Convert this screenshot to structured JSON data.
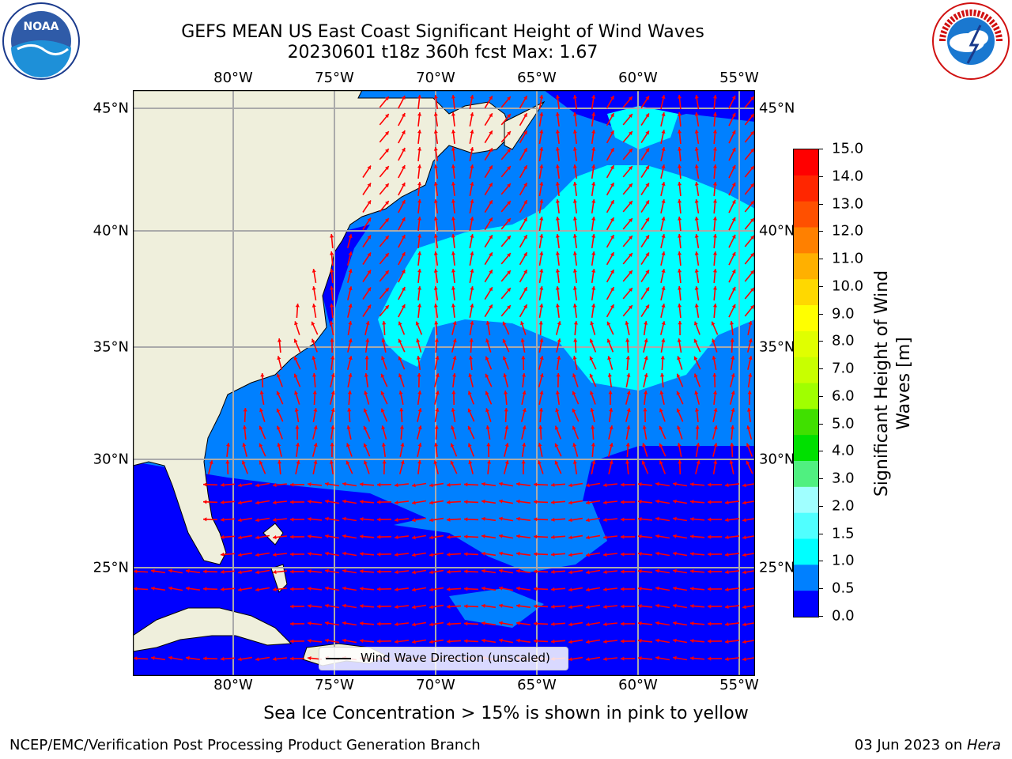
{
  "title": {
    "line1": "GEFS MEAN US East Coast Significant Height of Wind Waves",
    "line2": "20230601 t18z 360h fcst   Max: 1.67"
  },
  "axes": {
    "lon_labels": [
      "80°W",
      "75°W",
      "70°W",
      "65°W",
      "60°W",
      "55°W"
    ],
    "lat_labels": [
      "45°N",
      "40°N",
      "35°N",
      "30°N",
      "25°N"
    ]
  },
  "legend": {
    "label": "Wind Wave Direction (unscaled)"
  },
  "colorbar": {
    "label_line1": "Significant Height of Wind",
    "label_line2": "Waves [m]",
    "ticks": [
      "15.0",
      "14.0",
      "13.0",
      "12.0",
      "11.0",
      "10.0",
      "9.0",
      "8.0",
      "7.0",
      "6.0",
      "5.0",
      "4.0",
      "3.0",
      "2.0",
      "1.5",
      "1.0",
      "0.5",
      "0.0"
    ],
    "colors": [
      "#ff0000",
      "#ff2600",
      "#ff5000",
      "#ff8000",
      "#ffb000",
      "#ffd800",
      "#ffff00",
      "#e0ff00",
      "#c8ff00",
      "#a0ff00",
      "#40e000",
      "#00e000",
      "#50f080",
      "#a0ffff",
      "#50ffff",
      "#00ffff",
      "#0080ff",
      "#0000ff"
    ]
  },
  "ice_note": "Sea Ice Concentration > 15% is shown in pink to yellow",
  "footer": {
    "left": "NCEP/EMC/Verification Post Processing Product Generation Branch",
    "right_prefix": "03 Jun 2023 on ",
    "right_host": "Hera"
  },
  "logos": {
    "noaa_text": "NOAA",
    "nws_text": "NATIONAL WEATHER SERVICE"
  },
  "map_colors": {
    "land": "#efefdc",
    "wave_0_0.5": "#0000ff",
    "wave_0.5_1.0": "#0080ff",
    "wave_1.0_1.5": "#00ffff",
    "arrows": "#ff0000"
  },
  "chart_data": {
    "type": "heatmap",
    "title": "GEFS MEAN US East Coast Significant Height of Wind Waves",
    "subtitle": "20230601 t18z 360h fcst   Max: 1.67",
    "lon_range": [
      -85,
      -54
    ],
    "lat_range": [
      20.5,
      46
    ],
    "colorbar_range": [
      0,
      15
    ],
    "colorbar_label": "Significant Height of Wind Waves [m]",
    "max_value": 1.67,
    "grid": true
  }
}
